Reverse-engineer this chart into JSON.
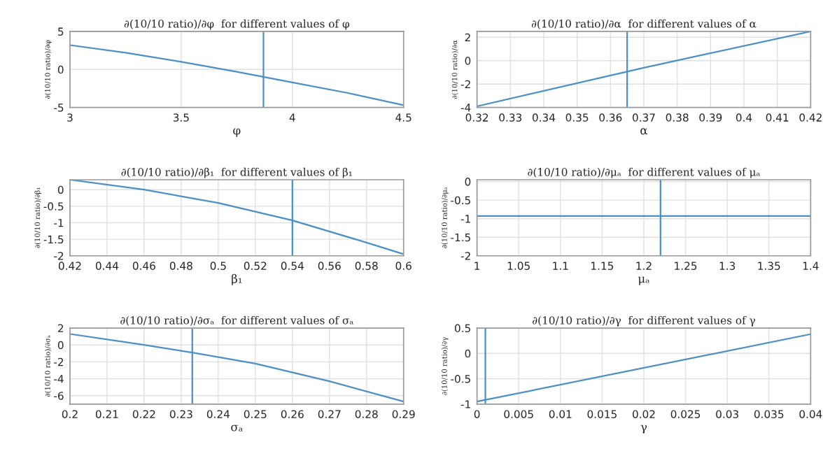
{
  "chart_data": [
    {
      "type": "line",
      "title": "∂(10/10 ratio)/∂φ  for different values of φ",
      "xlabel": "φ",
      "ylabel": "∂(10/10 ratio)/∂φ",
      "x": [
        3,
        3.25,
        3.5,
        3.75,
        4,
        4.25,
        4.5
      ],
      "series": [
        {
          "color": "#4a90c8",
          "values": [
            3.2,
            2.2,
            1.0,
            -0.3,
            -1.7,
            -3.1,
            -4.7
          ]
        }
      ],
      "xlim": [
        3,
        4.5
      ],
      "xticks": [
        3,
        3.5,
        4,
        4.5
      ],
      "ylim": [
        -5,
        5
      ],
      "yticks": [
        -5,
        0,
        5
      ],
      "grid": true,
      "ref_lines": [
        {
          "axis": "x",
          "value": 3.87,
          "color": "#4a90c8"
        }
      ]
    },
    {
      "type": "line",
      "title": "∂(10/10 ratio)/∂α  for different values of α",
      "xlabel": "α",
      "ylabel": "∂(10/10 ratio)/∂α",
      "x": [
        0.32,
        0.37,
        0.42
      ],
      "series": [
        {
          "color": "#4a90c8",
          "values": [
            -3.9,
            -0.6,
            2.5
          ]
        }
      ],
      "xlim": [
        0.32,
        0.42
      ],
      "xticks": [
        0.32,
        0.33,
        0.34,
        0.35,
        0.36,
        0.37,
        0.38,
        0.39,
        0.4,
        0.41,
        0.42
      ],
      "ylim": [
        -4,
        2.5
      ],
      "yticks": [
        -4,
        -2,
        0,
        2
      ],
      "grid": true,
      "ref_lines": [
        {
          "axis": "x",
          "value": 0.365,
          "color": "#4a90c8"
        }
      ]
    },
    {
      "type": "line",
      "title": "∂(10/10 ratio)/∂β₁  for different values of β₁",
      "xlabel": "β₁",
      "ylabel": "∂(10/10 ratio)/∂β₁",
      "x": [
        0.42,
        0.46,
        0.5,
        0.54,
        0.58,
        0.6
      ],
      "series": [
        {
          "color": "#4a90c8",
          "values": [
            0.3,
            0.0,
            -0.4,
            -0.93,
            -1.6,
            -1.95
          ]
        }
      ],
      "xlim": [
        0.42,
        0.6
      ],
      "xticks": [
        0.42,
        0.44,
        0.46,
        0.48,
        0.5,
        0.52,
        0.54,
        0.56,
        0.58,
        0.6
      ],
      "ylim": [
        -2,
        0.3
      ],
      "yticks": [
        -2,
        -1.5,
        -1,
        -0.5,
        0
      ],
      "grid": true,
      "ref_lines": [
        {
          "axis": "x",
          "value": 0.54,
          "color": "#4a90c8"
        }
      ]
    },
    {
      "type": "line",
      "title": "∂(10/10 ratio)/∂μₐ  for different values of μₐ",
      "xlabel": "μₐ",
      "ylabel": "∂(10/10 ratio)/∂μₐ",
      "x": [
        1,
        1.4
      ],
      "series": [
        {
          "color": "#4a90c8",
          "values": [
            -0.93,
            -0.93
          ]
        }
      ],
      "xlim": [
        1,
        1.4
      ],
      "xticks": [
        1,
        1.05,
        1.1,
        1.15,
        1.2,
        1.25,
        1.3,
        1.35,
        1.4
      ],
      "ylim": [
        -2,
        0.05
      ],
      "yticks": [
        -2,
        -1.5,
        -1,
        -0.5,
        0
      ],
      "grid": true,
      "ref_lines": [
        {
          "axis": "x",
          "value": 1.22,
          "color": "#4a90c8"
        }
      ]
    },
    {
      "type": "line",
      "title": "∂(10/10 ratio)/∂σₐ  for different values of σₐ",
      "xlabel": "σₐ",
      "ylabel": "∂(10/10 ratio)/∂σₐ",
      "x": [
        0.2,
        0.22,
        0.233,
        0.25,
        0.27,
        0.29
      ],
      "series": [
        {
          "color": "#4a90c8",
          "values": [
            1.3,
            0.0,
            -0.9,
            -2.2,
            -4.3,
            -6.7
          ]
        }
      ],
      "xlim": [
        0.2,
        0.29
      ],
      "xticks": [
        0.2,
        0.21,
        0.22,
        0.23,
        0.24,
        0.25,
        0.26,
        0.27,
        0.28,
        0.29
      ],
      "ylim": [
        -7,
        2
      ],
      "yticks": [
        -6,
        -4,
        -2,
        0,
        2
      ],
      "grid": true,
      "ref_lines": [
        {
          "axis": "x",
          "value": 0.233,
          "color": "#4a90c8"
        }
      ]
    },
    {
      "type": "line",
      "title": "∂(10/10 ratio)/∂γ  for different values of γ",
      "xlabel": "γ",
      "ylabel": "∂(10/10 ratio)/∂γ",
      "x": [
        0,
        0.04
      ],
      "series": [
        {
          "color": "#4a90c8",
          "values": [
            -0.95,
            0.38
          ]
        }
      ],
      "xlim": [
        0,
        0.04
      ],
      "xticks": [
        0,
        0.005,
        0.01,
        0.015,
        0.02,
        0.025,
        0.03,
        0.035,
        0.04
      ],
      "ylim": [
        -1,
        0.5
      ],
      "yticks": [
        -1,
        -0.5,
        0,
        0.5
      ],
      "grid": true,
      "ref_lines": [
        {
          "axis": "x",
          "value": 0.001,
          "color": "#4a90c8"
        }
      ]
    }
  ]
}
